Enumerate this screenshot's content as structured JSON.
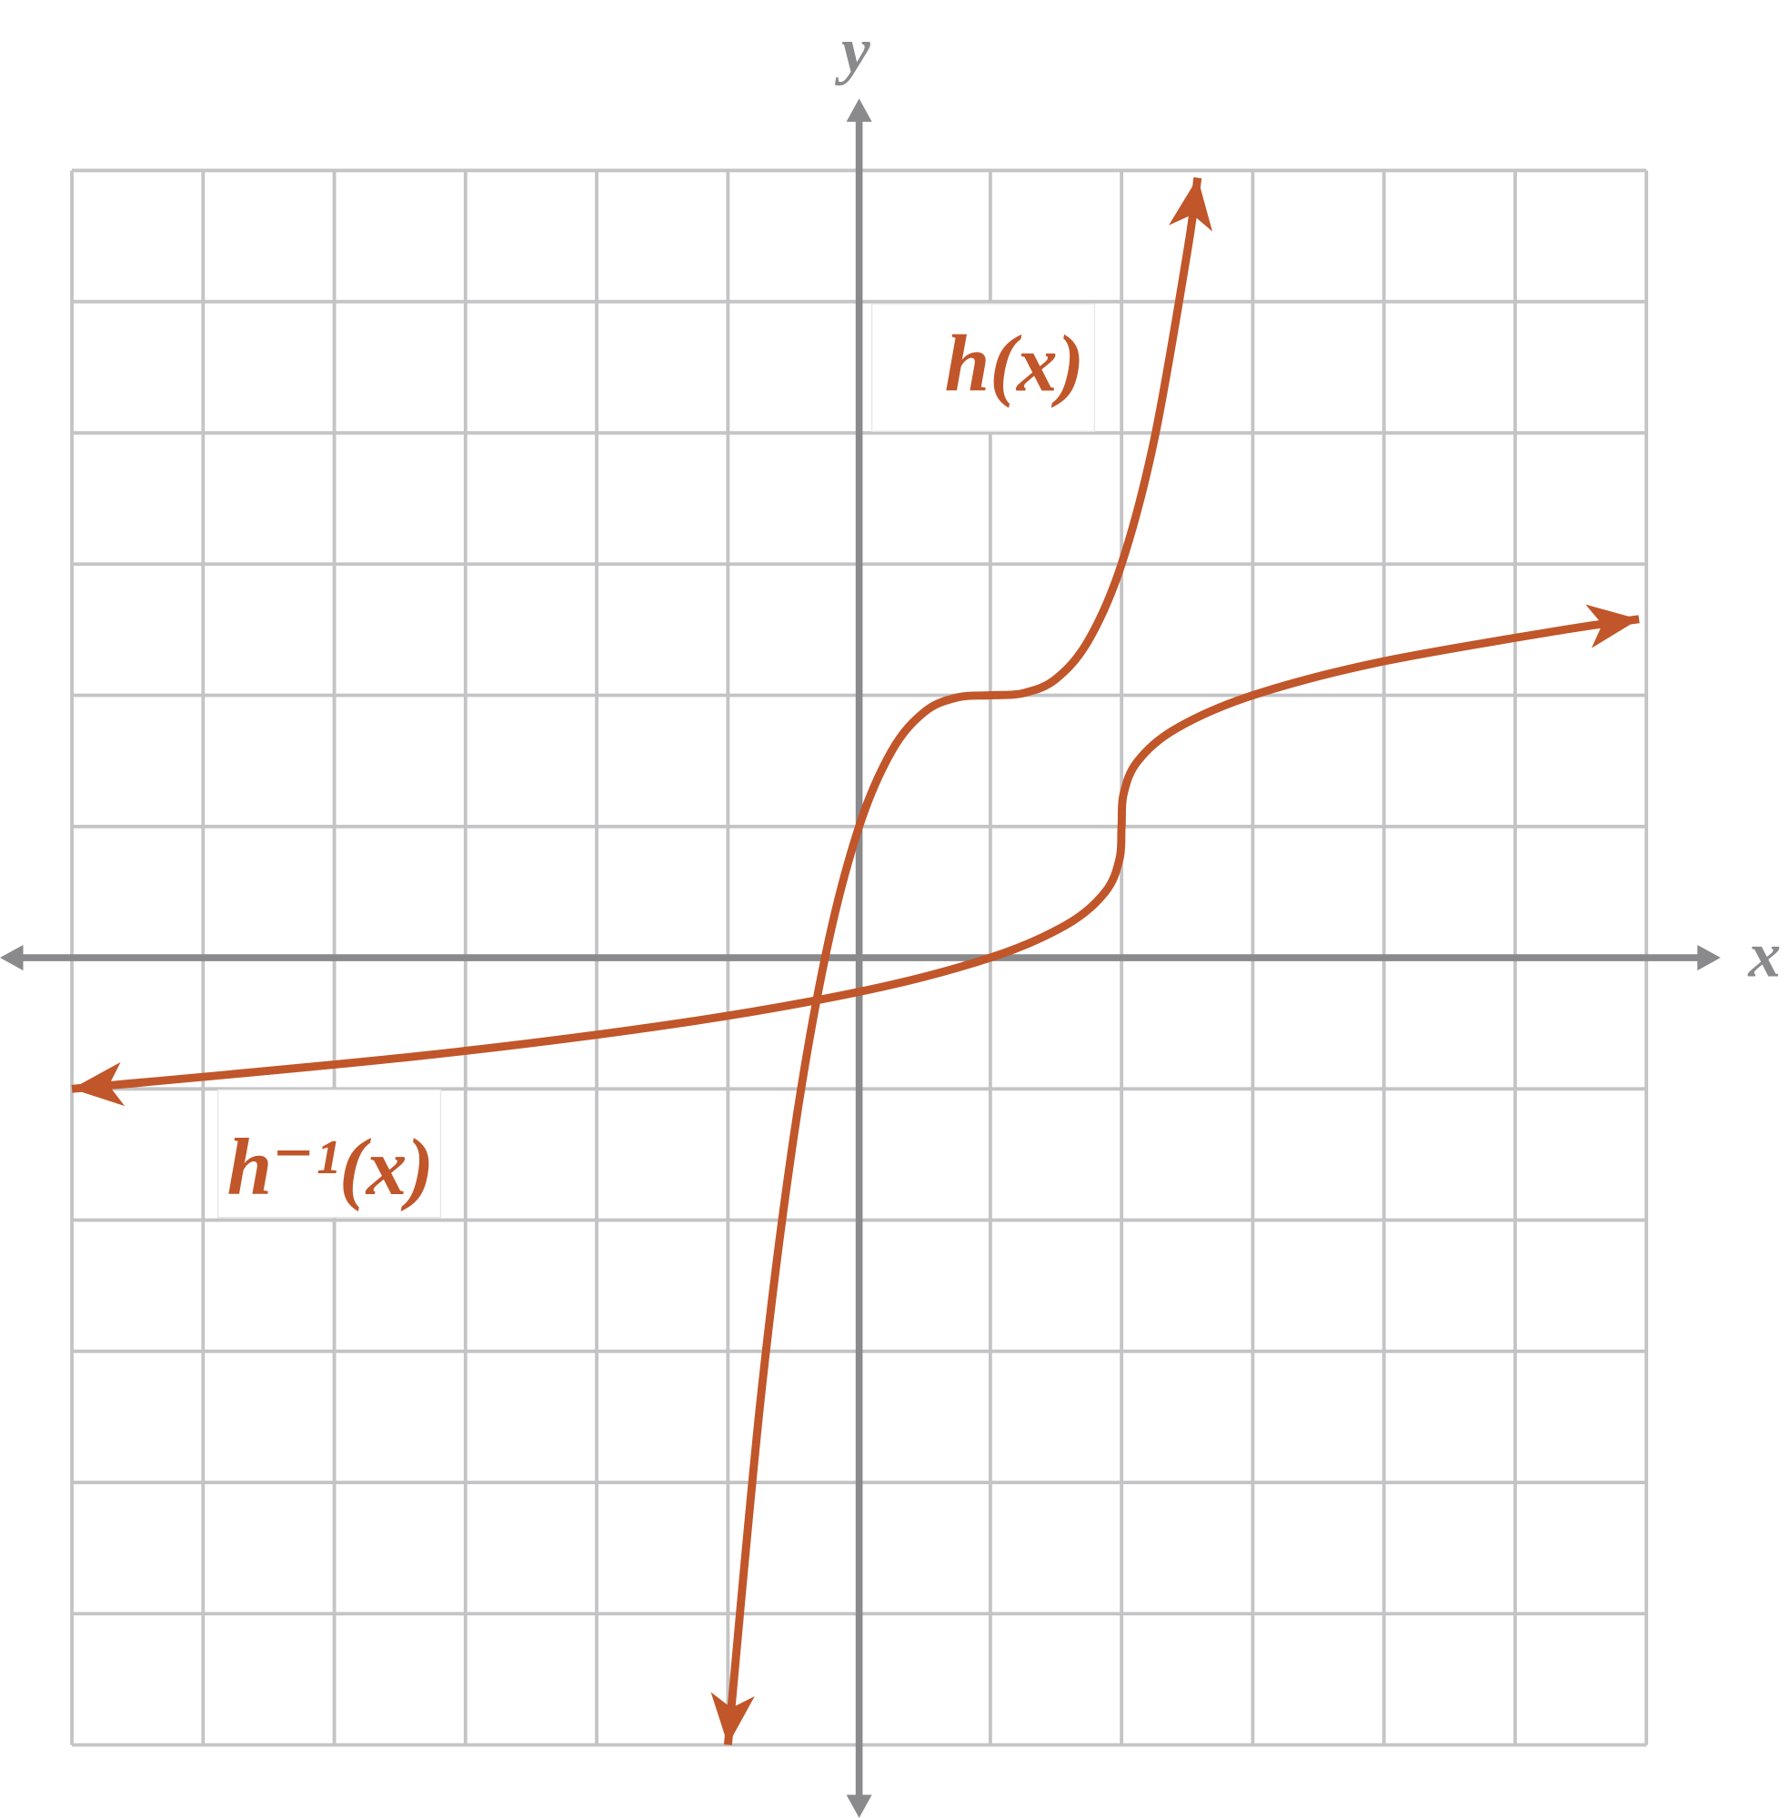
{
  "chart_data": {
    "type": "line",
    "xlabel": "x",
    "ylabel": "y",
    "xlim": [
      -6,
      6
    ],
    "ylim": [
      -6,
      6
    ],
    "xticks": [
      -6,
      -5,
      -4,
      -3,
      -2,
      -1,
      0,
      1,
      2,
      3,
      4,
      5,
      6
    ],
    "yticks": [
      -6,
      -5,
      -4,
      -3,
      -2,
      -1,
      0,
      1,
      2,
      3,
      4,
      5,
      6
    ],
    "grid": true,
    "series": [
      {
        "name": "h(x)",
        "color": "#c0562a",
        "x": [
          -1,
          -0.75,
          -0.5,
          -0.25,
          0,
          0.25,
          0.5,
          0.75,
          1,
          1.25,
          1.5,
          1.75,
          2,
          2.25,
          2.5,
          2.58
        ],
        "values": [
          -6,
          -3.359,
          -1.375,
          0.047,
          1,
          1.578,
          1.875,
          1.984,
          2,
          2.016,
          2.125,
          2.422,
          3,
          3.953,
          5.375,
          5.944
        ]
      },
      {
        "name": "h⁻¹(x)",
        "color": "#c0562a",
        "x": [
          -6,
          -3.359,
          -1.375,
          0.047,
          1,
          1.578,
          1.875,
          1.984,
          2,
          2.016,
          2.125,
          2.422,
          3,
          3.953,
          5.375,
          5.944
        ],
        "values": [
          -1,
          -0.75,
          -0.5,
          -0.25,
          0,
          0.25,
          0.5,
          0.75,
          1,
          1.25,
          1.5,
          1.75,
          2,
          2.25,
          2.5,
          2.58
        ]
      }
    ]
  }
}
